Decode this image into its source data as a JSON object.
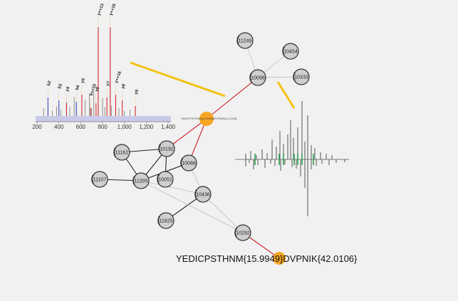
{
  "network": {
    "nodes": [
      {
        "id": "n11249",
        "label": "11249"
      },
      {
        "id": "n10454",
        "label": "10454"
      },
      {
        "id": "n10098",
        "label": "10098"
      },
      {
        "id": "n10333",
        "label": "10333"
      },
      {
        "id": "n11162",
        "label": "11162"
      },
      {
        "id": "n10192",
        "label": "10192"
      },
      {
        "id": "n10066",
        "label": "10066"
      },
      {
        "id": "n11107",
        "label": "11107"
      },
      {
        "id": "n11205",
        "label": "11205"
      },
      {
        "id": "n10051",
        "label": "10051"
      },
      {
        "id": "n10436",
        "label": "10436"
      },
      {
        "id": "n11625",
        "label": "11625"
      },
      {
        "id": "n10292",
        "label": "10292"
      }
    ],
    "peptide_nodes": [
      {
        "id": "p1",
        "sequence": "YEDICPSTHNM{15.9949}DVPNIK{42.0106}"
      },
      {
        "id": "p2",
        "sequence": "YEDICPSTHNM{15.9949}DVPNIK{42.0106}"
      }
    ],
    "edges": [
      {
        "from": "n11249",
        "to": "n10098",
        "kind": "gray"
      },
      {
        "from": "n10454",
        "to": "n10098",
        "kind": "gray"
      },
      {
        "from": "n10333",
        "to": "n10098",
        "kind": "gray"
      },
      {
        "from": "n10098",
        "to": "p1",
        "kind": "red"
      },
      {
        "from": "p1",
        "to": "n10192",
        "kind": "red"
      },
      {
        "from": "p1",
        "to": "n10066",
        "kind": "red"
      },
      {
        "from": "n11162",
        "to": "n10192",
        "kind": "dark"
      },
      {
        "from": "n11162",
        "to": "n11205",
        "kind": "dark"
      },
      {
        "from": "n10192",
        "to": "n11205",
        "kind": "dark"
      },
      {
        "from": "n10192",
        "to": "n10051",
        "kind": "dark"
      },
      {
        "from": "n10066",
        "to": "n11205",
        "kind": "dark"
      },
      {
        "from": "n11107",
        "to": "n11205",
        "kind": "dark"
      },
      {
        "from": "n10066",
        "to": "n10436",
        "kind": "gray"
      },
      {
        "from": "n11205",
        "to": "n10436",
        "kind": "gray"
      },
      {
        "from": "n11625",
        "to": "n10436",
        "kind": "dark"
      },
      {
        "from": "n11205",
        "to": "n10292",
        "kind": "gray"
      },
      {
        "from": "n10436",
        "to": "n10292",
        "kind": "gray"
      },
      {
        "from": "n10292",
        "to": "p2",
        "kind": "red"
      }
    ]
  },
  "spectrum": {
    "x_ticks": [
      "200",
      "400",
      "600",
      "800",
      "1,000",
      "1,200",
      "1,400"
    ],
    "fragment_labels": [
      "b2",
      "b3",
      "y4",
      "b4",
      "y5",
      "b++10",
      "y6",
      "y++13",
      "y++15",
      "y7",
      "y++16",
      "y8",
      "y9"
    ],
    "colors": {
      "b_ion": "#3b4cc0",
      "y_ion": "#d12a2a",
      "unmatched": "#666666",
      "axis_band": "#c8cbe8"
    }
  },
  "mirror_plot": {
    "colors": {
      "matched": "#2e9e4e",
      "peaks": "#555555"
    }
  },
  "colors": {
    "highlight_line": "#f3c213",
    "peptide_node": "#f5a623",
    "node_fill": "#cfcfcf",
    "red_edge": "#c8202a",
    "dark_edge": "#222222",
    "gray_edge": "#bdbdbd"
  }
}
